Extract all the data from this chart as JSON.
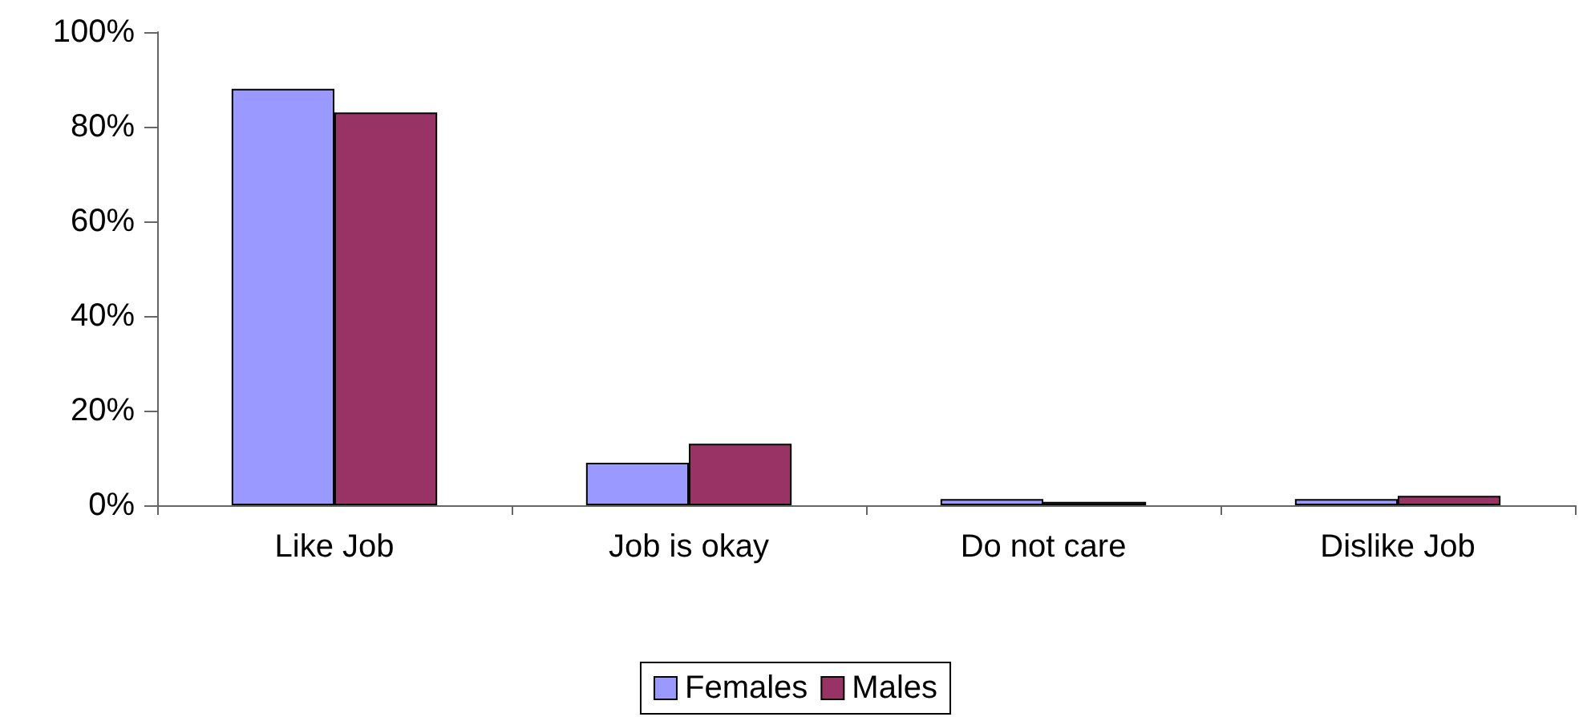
{
  "chart_data": {
    "type": "bar",
    "categories": [
      "Like Job",
      "Job is okay",
      "Do not care",
      "Dislike Job"
    ],
    "series": [
      {
        "name": "Females",
        "color": "#9999ff",
        "values": [
          88,
          9,
          1.3,
          1.3
        ]
      },
      {
        "name": "Males",
        "color": "#993366",
        "values": [
          83,
          13,
          0.7,
          2
        ]
      }
    ],
    "ylim": [
      0,
      100
    ],
    "yticks": [
      {
        "value": 0,
        "label": "0%"
      },
      {
        "value": 20,
        "label": "20%"
      },
      {
        "value": 40,
        "label": "40%"
      },
      {
        "value": 60,
        "label": "60%"
      },
      {
        "value": 80,
        "label": "80%"
      },
      {
        "value": 100,
        "label": "100%"
      }
    ],
    "grid": false,
    "legend": "bottom"
  }
}
